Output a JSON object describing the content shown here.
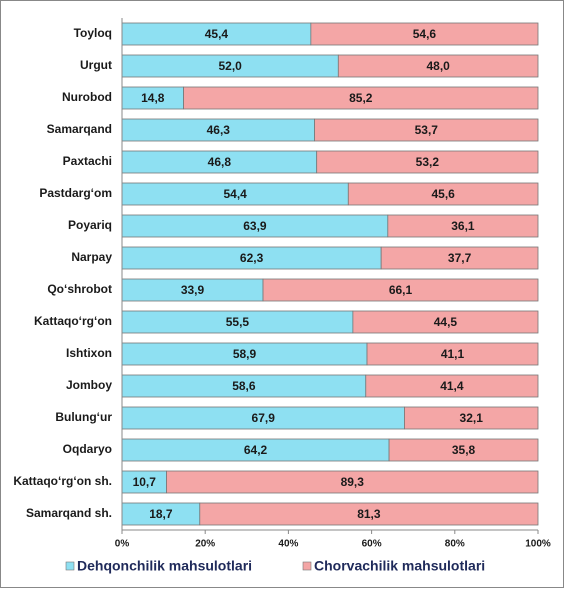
{
  "chart_data": {
    "type": "stacked-bar-horizontal",
    "categories": [
      "Toyloq",
      "Urgut",
      "Nurobod",
      "Samarqand",
      "Paxtachi",
      "Pastdarg‘om",
      "Poyariq",
      "Narpay",
      "Qo‘shrobot",
      "Kattaqo‘rg‘on",
      "Ishtixon",
      "Jomboy",
      "Bulung‘ur",
      "Oqdaryo",
      "Kattaqo‘rg‘on sh.",
      "Samarqand sh."
    ],
    "series": [
      {
        "name": "Dehqonchilik mahsulotlari",
        "color": "#8ee0f2",
        "values": [
          45.4,
          52.0,
          14.8,
          46.3,
          46.8,
          54.4,
          63.9,
          62.3,
          33.9,
          55.5,
          58.9,
          58.6,
          67.9,
          64.2,
          10.7,
          18.7
        ],
        "value_labels": [
          "45,4",
          "52,0",
          "14,8",
          "46,3",
          "46,8",
          "54,4",
          "63,9",
          "62,3",
          "33,9",
          "55,5",
          "58,9",
          "58,6",
          "67,9",
          "64,2",
          "10,7",
          "18,7"
        ]
      },
      {
        "name": "Chorvachilik mahsulotlari",
        "color": "#f4a6a6",
        "values": [
          54.6,
          48.0,
          85.2,
          53.7,
          53.2,
          45.6,
          36.1,
          37.7,
          66.1,
          44.5,
          41.1,
          41.4,
          32.1,
          35.8,
          89.3,
          81.3
        ],
        "value_labels": [
          "54,6",
          "48,0",
          "85,2",
          "53,7",
          "53,2",
          "45,6",
          "36,1",
          "37,7",
          "66,1",
          "44,5",
          "41,1",
          "41,4",
          "32,1",
          "35,8",
          "89,3",
          "81,3"
        ]
      }
    ],
    "xlim": [
      0,
      100
    ],
    "xticks": [
      {
        "value": 0,
        "label": "0%"
      },
      {
        "value": 20,
        "label": "20%"
      },
      {
        "value": 40,
        "label": "40%"
      },
      {
        "value": 60,
        "label": "60%"
      },
      {
        "value": 80,
        "label": "80%"
      },
      {
        "value": 100,
        "label": "100%"
      }
    ],
    "legend": "bottom"
  }
}
